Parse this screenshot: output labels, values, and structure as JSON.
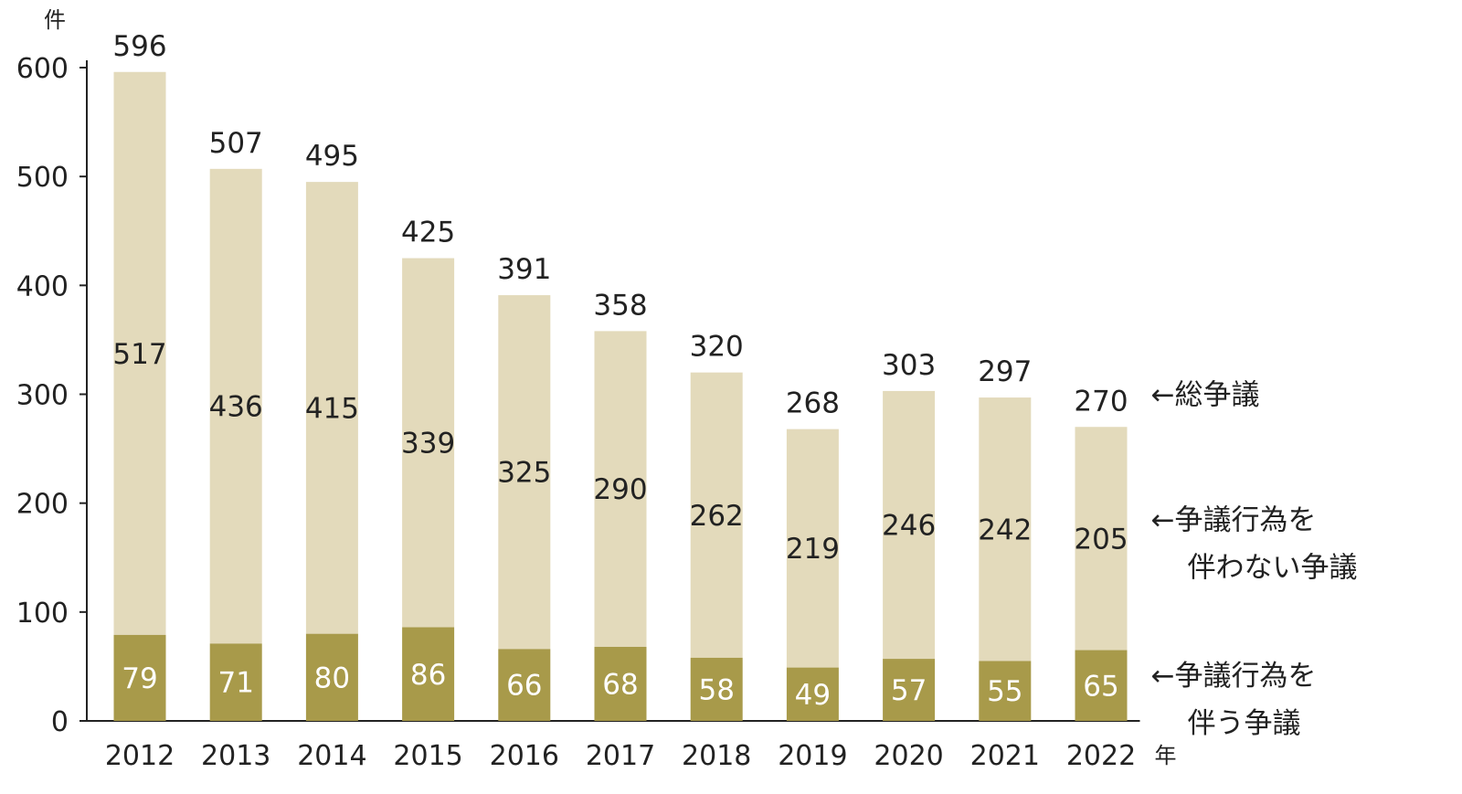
{
  "chart_data": {
    "type": "bar",
    "stacked": true,
    "y_unit": "件",
    "x_unit": "年",
    "ylim": [
      0,
      600
    ],
    "yticks": [
      0,
      100,
      200,
      300,
      400,
      500,
      600
    ],
    "categories": [
      "2012",
      "2013",
      "2014",
      "2015",
      "2016",
      "2017",
      "2018",
      "2019",
      "2020",
      "2021",
      "2022"
    ],
    "totals": [
      596,
      507,
      495,
      425,
      391,
      358,
      320,
      268,
      303,
      297,
      270
    ],
    "series": [
      {
        "values": [
          79,
          71,
          80,
          86,
          66,
          68,
          58,
          49,
          57,
          55,
          65
        ],
        "color": "#a89a4a",
        "label_color": "#ffffff"
      },
      {
        "values": [
          517,
          436,
          415,
          339,
          325,
          290,
          262,
          219,
          246,
          242,
          205
        ],
        "color": "#e3dabb",
        "label_color": "#222222"
      }
    ],
    "annotations": [
      {
        "lines": [
          "←総争議"
        ],
        "value": 300
      },
      {
        "lines": [
          "←争議行為を",
          "伴わない争議"
        ],
        "value": 185
      },
      {
        "lines": [
          "←争議行為を",
          "伴う争議"
        ],
        "value": 42
      }
    ],
    "grid": false,
    "legend": "right"
  }
}
